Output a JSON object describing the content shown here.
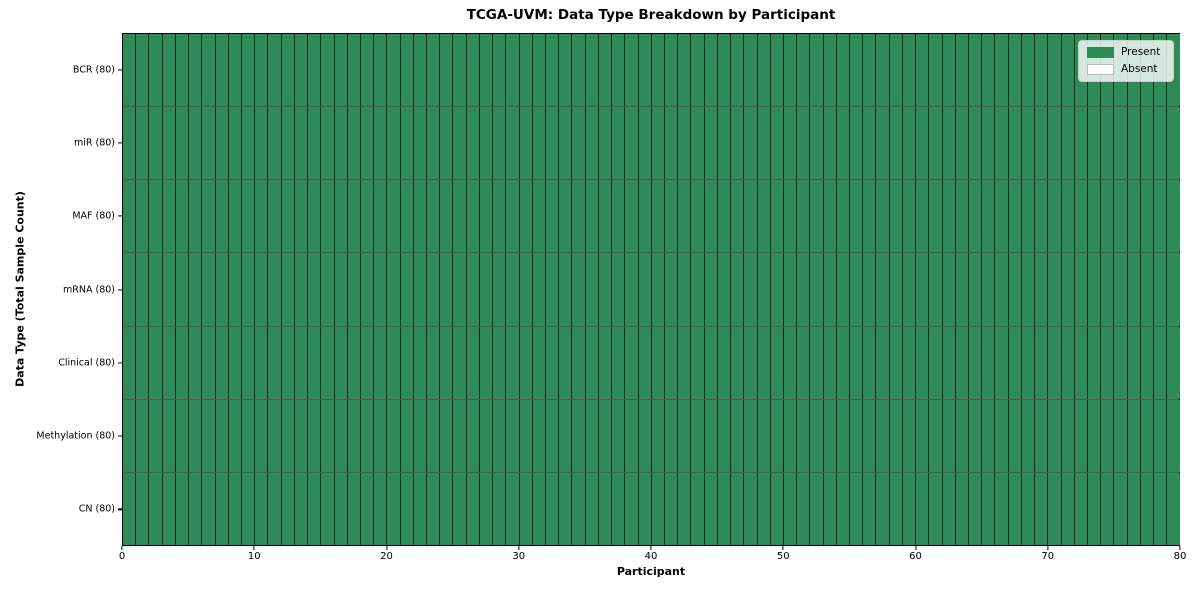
{
  "chart_data": {
    "type": "heatmap",
    "title": "TCGA-UVM: Data Type Breakdown by Participant",
    "xlabel": "Participant",
    "ylabel": "Data Type (Total Sample Count)",
    "xlim": [
      0,
      80
    ],
    "x_ticks": [
      0,
      10,
      20,
      30,
      40,
      50,
      60,
      70,
      80
    ],
    "n_participants": 80,
    "grid": false,
    "rows": [
      {
        "label": "BCR (80)",
        "data_type": "BCR",
        "total_samples": 80,
        "present_count": 80,
        "absent_count": 0
      },
      {
        "label": "miR (80)",
        "data_type": "miR",
        "total_samples": 80,
        "present_count": 80,
        "absent_count": 0
      },
      {
        "label": "MAF (80)",
        "data_type": "MAF",
        "total_samples": 80,
        "present_count": 80,
        "absent_count": 0
      },
      {
        "label": "mRNA (80)",
        "data_type": "mRNA",
        "total_samples": 80,
        "present_count": 80,
        "absent_count": 0
      },
      {
        "label": "Clinical (80)",
        "data_type": "Clinical",
        "total_samples": 80,
        "present_count": 80,
        "absent_count": 0
      },
      {
        "label": "Methylation (80)",
        "data_type": "Methylation",
        "total_samples": 80,
        "present_count": 80,
        "absent_count": 0
      },
      {
        "label": "CN (80)",
        "data_type": "CN",
        "total_samples": 80,
        "present_count": 80,
        "absent_count": 0
      }
    ],
    "legend": {
      "position": "upper right",
      "entries": [
        {
          "label": "Present",
          "color": "#2e8b57"
        },
        {
          "label": "Absent",
          "color": "#ffffff"
        }
      ]
    },
    "colors": {
      "present": "#2e8b57",
      "absent": "#ffffff",
      "cell_edge": "rgba(0,0,0,0.65)",
      "background": "#ffffff"
    }
  }
}
